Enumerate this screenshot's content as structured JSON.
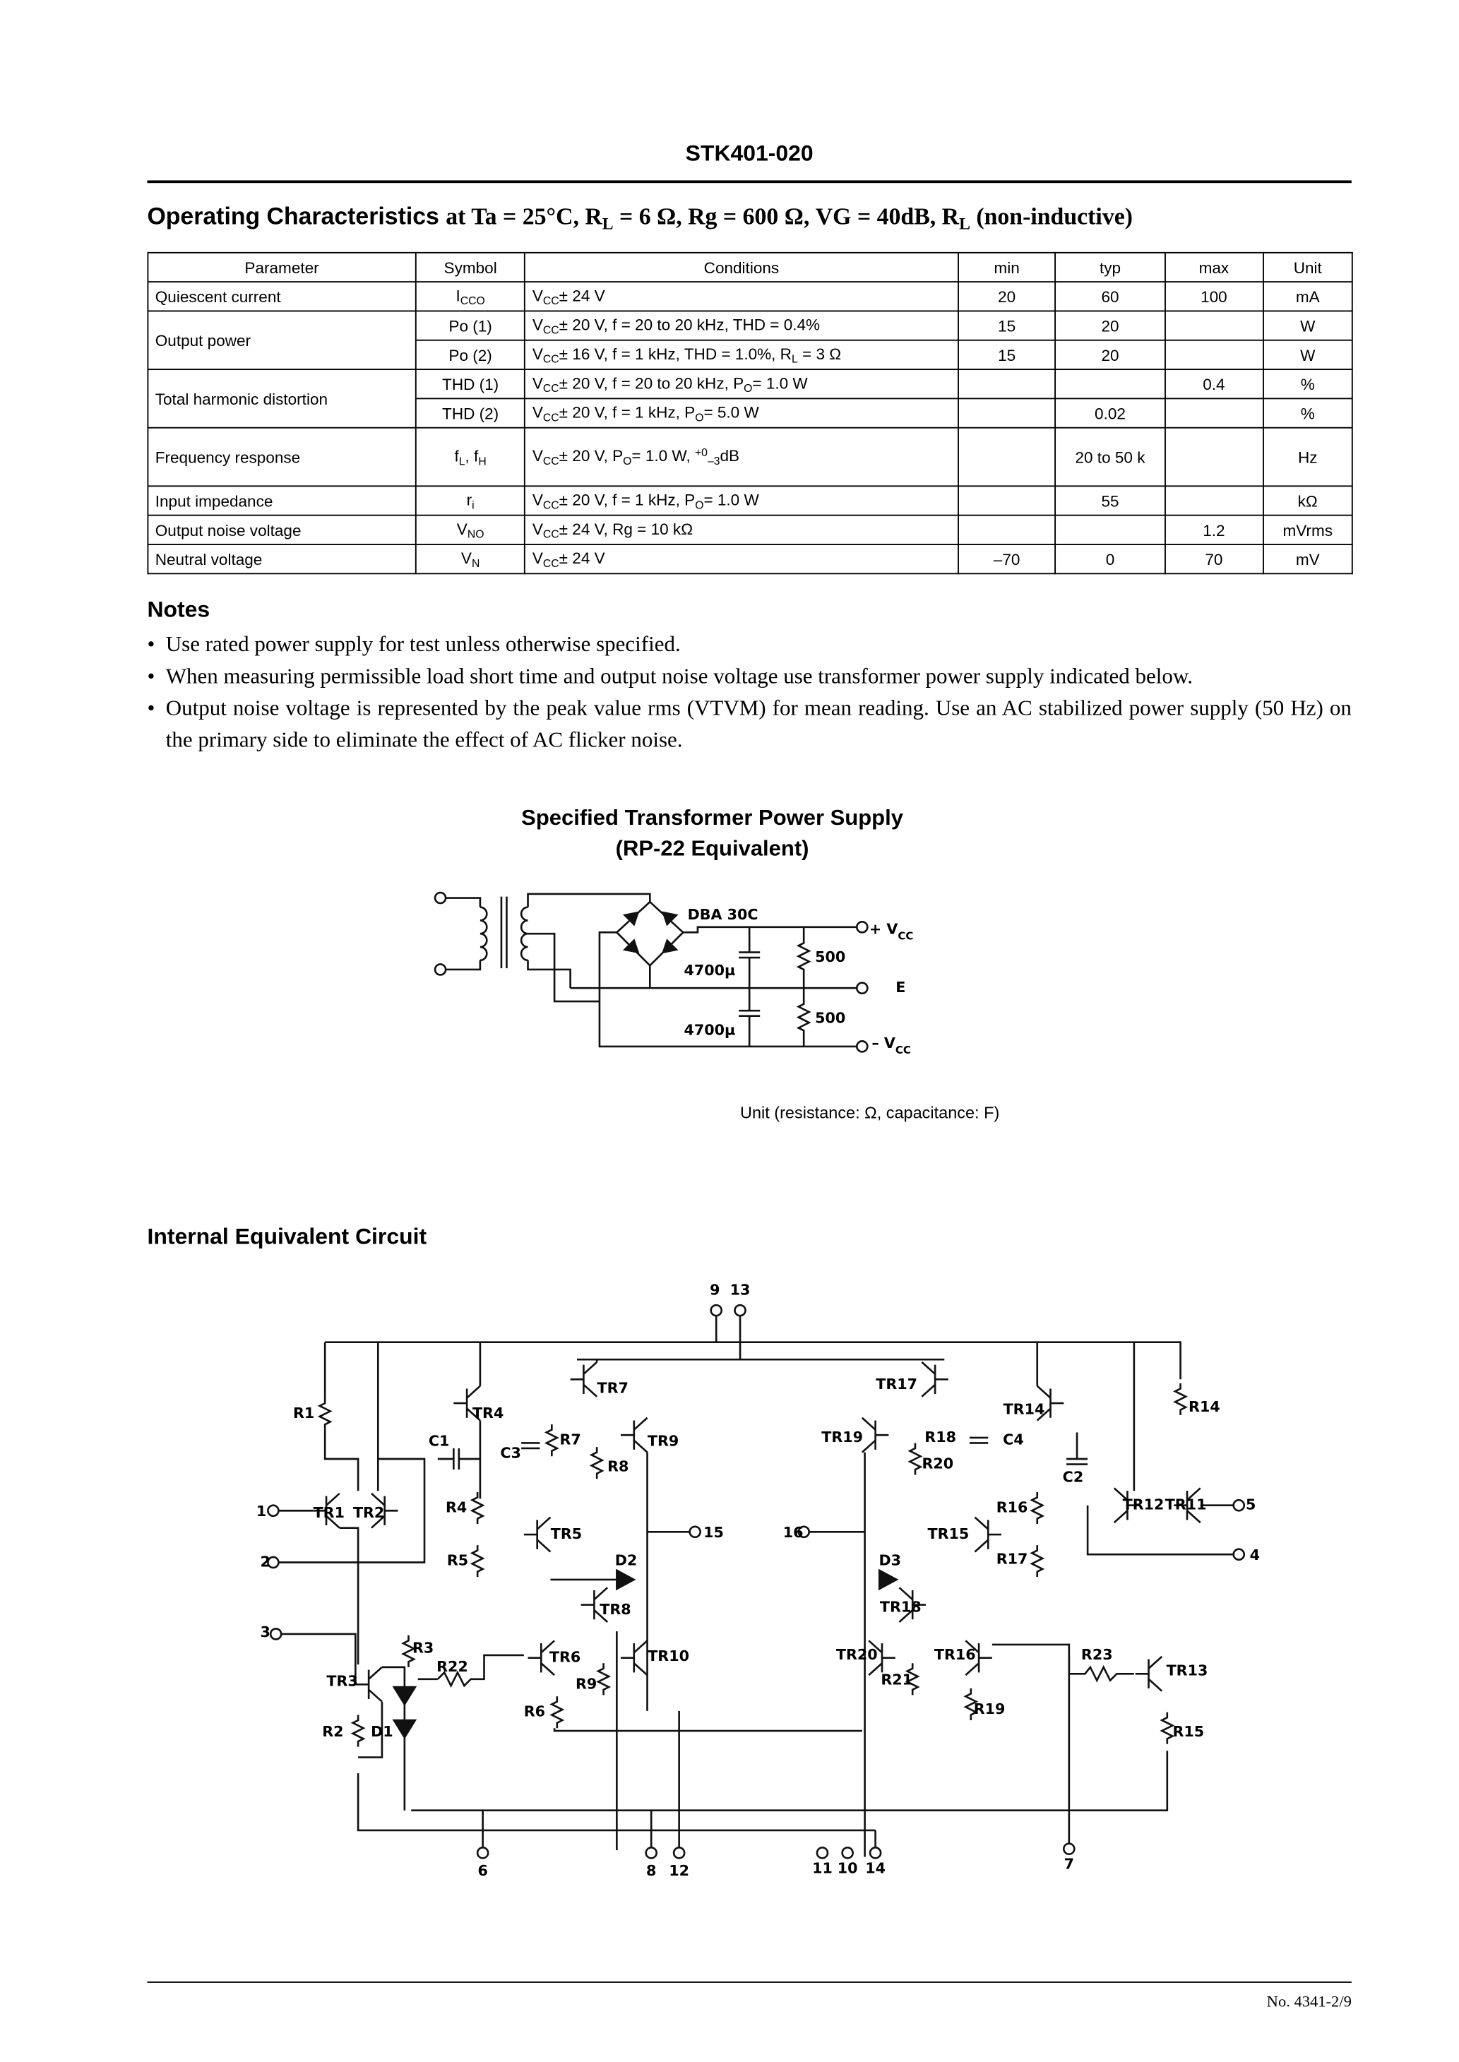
{
  "header": {
    "title": "STK401-020"
  },
  "operating": {
    "title_lead": "Operating Characteristics",
    "title_rest": [
      "at Ta = 25°C, R",
      {
        "sub": "L"
      },
      " = 6 Ω, Rg = 600 Ω, VG = 40dB, R",
      {
        "sub": "L"
      },
      " (non-inductive)"
    ]
  },
  "table": {
    "header": [
      "Parameter",
      "Symbol",
      "Conditions",
      "min",
      "typ",
      "max",
      "Unit"
    ],
    "rows": [
      {
        "parameter": "Quiescent current",
        "symbol": [
          "I",
          {
            "sub": "CCO"
          }
        ],
        "conditions": [
          "V",
          {
            "sub": "CC"
          },
          "± 24 V"
        ],
        "min": "20",
        "typ": "60",
        "max": "100",
        "unit": "mA"
      },
      {
        "parameter": "Output power",
        "symbol": "Po (1)",
        "conditions": [
          "V",
          {
            "sub": "CC"
          },
          "± 20 V, f = 20 to 20 kHz, THD = 0.4%"
        ],
        "min": "15",
        "typ": "20",
        "unit": "W"
      },
      {
        "symbol": "Po (2)",
        "conditions": [
          "V",
          {
            "sub": "CC"
          },
          "± 16 V, f = 1 kHz, THD = 1.0%, R",
          {
            "sub": "L"
          },
          " = 3 Ω"
        ],
        "min": "15",
        "typ": "20",
        "unit": "W"
      },
      {
        "parameter": "Total harmonic distortion",
        "symbol": "THD (1)",
        "conditions": [
          "V",
          {
            "sub": "CC"
          },
          "± 20 V, f = 20 to 20 kHz, P",
          {
            "sub": "O"
          },
          "= 1.0 W"
        ],
        "max": "0.4",
        "unit": "%"
      },
      {
        "symbol": "THD (2)",
        "conditions": [
          "V",
          {
            "sub": "CC"
          },
          "± 20 V, f = 1 kHz, P",
          {
            "sub": "O"
          },
          "= 5.0 W"
        ],
        "typ": "0.02",
        "unit": "%"
      },
      {
        "parameter": "Frequency response",
        "symbol": [
          "f",
          {
            "sub": "L"
          },
          ", f",
          {
            "sub": "H"
          }
        ],
        "conditions": [
          "V",
          {
            "sub": "CC"
          },
          "± 20 V, P",
          {
            "sub": "O"
          },
          "= 1.0 W, ",
          {
            "sup": "+0"
          },
          {
            "sub": "–3"
          },
          "dB"
        ],
        "typ": "20 to 50 k",
        "unit": "Hz"
      },
      {
        "parameter": "Input impedance",
        "symbol": [
          "r",
          {
            "sub": "i"
          }
        ],
        "conditions": [
          "V",
          {
            "sub": "CC"
          },
          "± 20 V, f = 1 kHz, P",
          {
            "sub": "O"
          },
          "= 1.0 W"
        ],
        "typ": "55",
        "unit": "kΩ"
      },
      {
        "parameter": "Output noise voltage",
        "symbol": [
          "V",
          {
            "sub": "NO"
          }
        ],
        "conditions": [
          "V",
          {
            "sub": "CC"
          },
          "± 24 V, Rg = 10 kΩ"
        ],
        "max": "1.2",
        "unit": "mVrms"
      },
      {
        "parameter": "Neutral voltage",
        "symbol": [
          "V",
          {
            "sub": "N"
          }
        ],
        "conditions": [
          "V",
          {
            "sub": "CC"
          },
          "± 24 V"
        ],
        "min": "–70",
        "typ": "0",
        "max": "70",
        "unit": "mV"
      }
    ]
  },
  "notes": {
    "title": "Notes",
    "items": [
      "Use rated power supply for test unless otherwise specified.",
      "When measuring permissible load short time and output noise voltage use transformer power supply indicated below.",
      "Output noise voltage is represented by the peak value rms (VTVM) for mean reading.  Use an AC stabilized power supply (50 Hz) on the primary side to eliminate the effect of AC flicker noise."
    ]
  },
  "transformer": {
    "title": [
      "Specified Transformer Power Supply",
      "(RP-22 Equivalent)"
    ],
    "labels": [
      "DBA 30C",
      [
        "+ V",
        {
          "sub": "CC"
        }
      ],
      "500",
      "4700µ",
      "E",
      "500",
      "4700µ",
      [
        "– V",
        {
          "sub": "CC"
        }
      ]
    ],
    "unit": "Unit (resistance: Ω, capacitance: F)"
  },
  "circuit": {
    "title": "Internal Equivalent Circuit",
    "labels": [
      "9",
      "13",
      "1",
      "2",
      "3",
      "15",
      "16",
      "5",
      "4",
      "6",
      "8",
      "12",
      "11",
      "10",
      "14",
      "7",
      "R1",
      "TR4",
      "C1",
      "C3",
      "R7",
      "TR7",
      "TR9",
      "R8",
      "R4",
      "TR5",
      "R5",
      "TR1",
      "TR2",
      "D2",
      "TR8",
      "R3",
      "R22",
      "TR6",
      "TR10",
      "TR3",
      "R9",
      "R2",
      "D1",
      "R6",
      "TR17",
      "TR19",
      "R18",
      "C4",
      "R20",
      "TR14",
      "R14",
      "C2",
      "R16",
      "TR15",
      "TR12",
      "TR11",
      "R17",
      "D3",
      "TR18",
      "TR20",
      "TR16",
      "R23",
      "TR13",
      "R21",
      "R19",
      "R15"
    ]
  },
  "footer": {
    "page": "No. 4341-2/9"
  }
}
